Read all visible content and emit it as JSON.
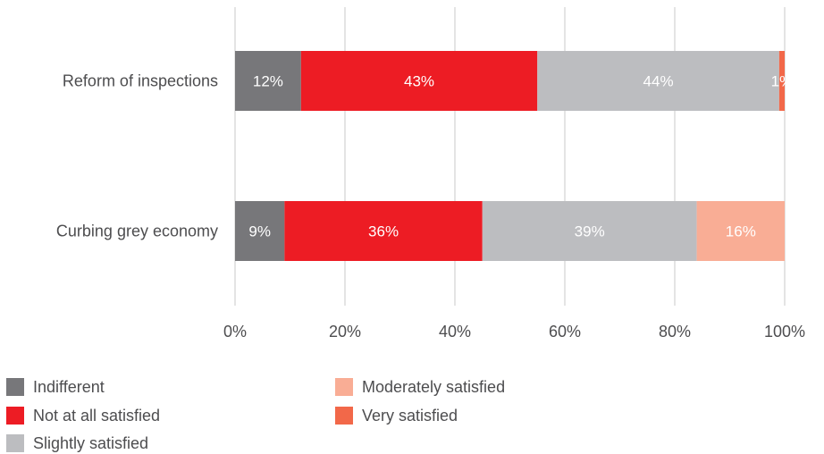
{
  "chart_data": {
    "type": "bar",
    "orientation": "horizontal",
    "stacked": true,
    "categories": [
      "Reform of inspections",
      "Curbing grey economy"
    ],
    "series": [
      {
        "name": "Indifferent",
        "values": [
          12,
          9
        ],
        "labels": [
          "12%",
          "9%"
        ],
        "color": "#77777a"
      },
      {
        "name": "Not at all satisfied",
        "values": [
          43,
          36
        ],
        "labels": [
          "43%",
          "36%"
        ],
        "color": "#ed1c24"
      },
      {
        "name": "Slightly satisfied",
        "values": [
          44,
          39
        ],
        "labels": [
          "44%",
          "39%"
        ],
        "color": "#bcbdc0"
      },
      {
        "name": "Moderately satisfied",
        "values": [
          0,
          16
        ],
        "labels": [
          "",
          "16%"
        ],
        "color": "#f9ad95"
      },
      {
        "name": "Very satisfied",
        "values": [
          1,
          0
        ],
        "labels": [
          "1%",
          ""
        ],
        "color": "#f26849"
      }
    ],
    "xlim": [
      0,
      100
    ],
    "x_ticks": [
      "0%",
      "20%",
      "40%",
      "60%",
      "80%",
      "100%"
    ],
    "grid": true,
    "legend_position": "bottom-left"
  }
}
